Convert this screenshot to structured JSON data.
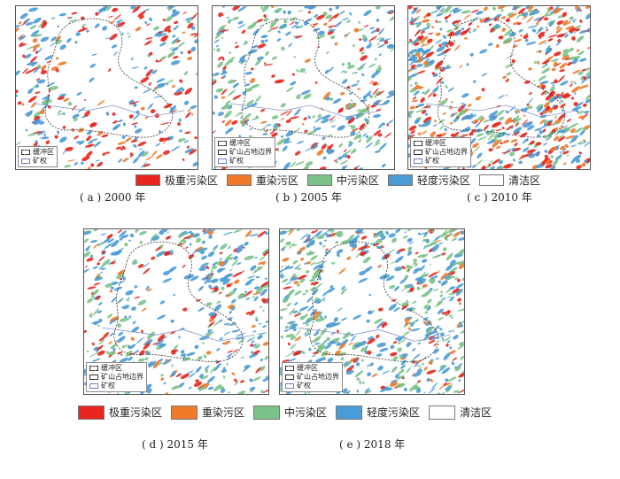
{
  "inset_legend": {
    "buffer": "缓冲区",
    "mine_boundary": "矿山占地边界",
    "mining_right": "矿权"
  },
  "legend": {
    "items": [
      {
        "label": "极重污染区",
        "color": "#e8251c"
      },
      {
        "label": "重染污区",
        "color": "#f07a2a"
      },
      {
        "label": "中污染区",
        "color": "#7cc389"
      },
      {
        "label": "轻度污染区",
        "color": "#4b9bd6"
      },
      {
        "label": "清洁区",
        "color": "#ffffff"
      }
    ]
  },
  "panels": [
    {
      "caption": "( a )  2000 年"
    },
    {
      "caption": "( b )  2005 年"
    },
    {
      "caption": "( c )  2010 年"
    },
    {
      "caption": "( d )  2015 年"
    },
    {
      "caption": "( e )  2018 年"
    }
  ]
}
